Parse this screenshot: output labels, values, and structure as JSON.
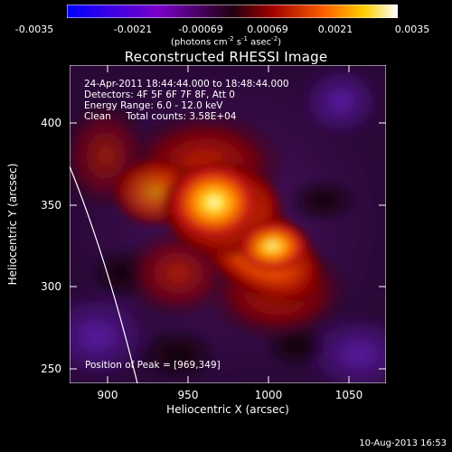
{
  "colorbar": {
    "ticks": [
      "-0.0035",
      "-0.0021",
      "-0.00069",
      "0.00069",
      "0.0021",
      "0.0035"
    ],
    "unit_prefix": "(photons cm",
    "unit_sup1": "-2",
    "unit_mid": " s",
    "unit_sup2": "-1",
    "unit_mid2": " asec",
    "unit_sup3": "-2",
    "unit_suffix": ")"
  },
  "title": "Reconstructed RHESSI Image",
  "info": {
    "time": "24-Apr-2011 18:44:44.000 to 18:48:44.000",
    "detectors": "Detectors: 4F 5F 6F 7F 8F, Att 0",
    "energy": "Energy Range: 6.0 - 12.0 keV",
    "method": "Clean     Total counts: 3.58E+04"
  },
  "peak_label": "Position of Peak = [969,349]",
  "axes": {
    "xlabel": "Heliocentric X (arcsec)",
    "ylabel": "Heliocentric Y (arcsec)",
    "xticks": [
      "900",
      "950",
      "1000",
      "1050"
    ],
    "yticks": [
      "400",
      "350",
      "300",
      "250"
    ]
  },
  "date_stamp": "10-Aug-2013 16:53",
  "colors": {
    "limb": "#ffffff",
    "background": "#000000"
  }
}
